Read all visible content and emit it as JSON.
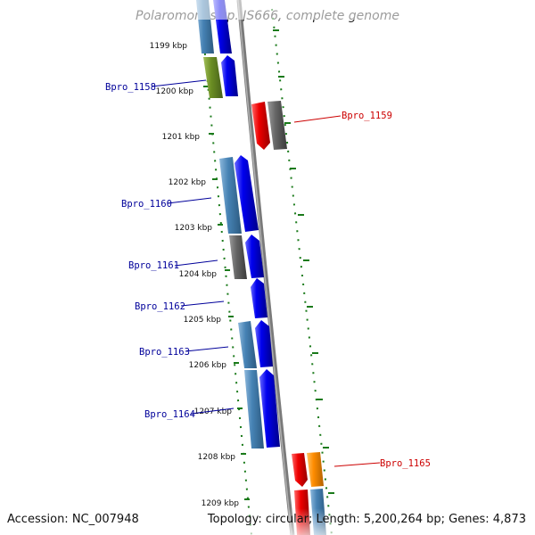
{
  "title": "Polaromonas sp. JS666, complete genome",
  "footer": {
    "accession": "Accession: NC_007948",
    "summary": "Topology: circular; Length: 5,200,264 bp; Genes: 4,873"
  },
  "ticks": [
    "1199 kbp",
    "1200 kbp",
    "1201 kbp",
    "1202 kbp",
    "1203 kbp",
    "1204 kbp",
    "1205 kbp",
    "1206 kbp",
    "1207 kbp",
    "1208 kbp",
    "1209 kbp"
  ],
  "labels": {
    "bpro_1158": "Bpro_1158",
    "bpro_1159": "Bpro_1159",
    "bpro_1160": "Bpro_1160",
    "bpro_1161": "Bpro_1161",
    "bpro_1162": "Bpro_1162",
    "bpro_1163": "Bpro_1163",
    "bpro_1164": "Bpro_1164",
    "bpro_1165": "Bpro_1165"
  },
  "colors": {
    "forward_cds": "#0000ee",
    "feature_steel": "#4682b4",
    "feature_grey": "#666666",
    "feature_olive": "#6b8e23",
    "reverse_cds": "#ee0000",
    "feature_orange": "#ff8c00",
    "backbone": "#808080",
    "tick_green": "#1a7a1a",
    "label_blue": "#00009a",
    "label_red": "#cc0000"
  }
}
